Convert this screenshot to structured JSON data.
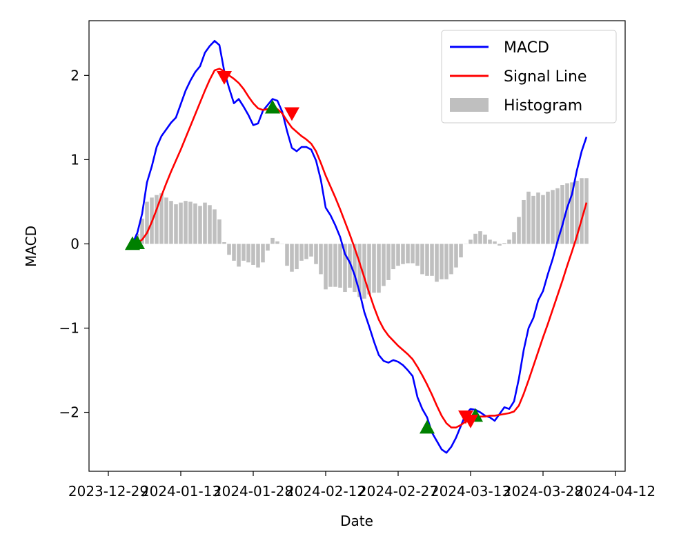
{
  "chart_data": {
    "type": "line",
    "xlabel": "Date",
    "ylabel": "MACD",
    "xlim": [
      "2023-12-25",
      "2024-04-14"
    ],
    "ylim": [
      -2.7,
      2.65
    ],
    "x_ticks": [
      "2023-12-29",
      "2024-01-13",
      "2024-01-28",
      "2024-02-12",
      "2024-02-27",
      "2024-03-13",
      "2024-03-28",
      "2024-04-12"
    ],
    "y_ticks": [
      -2,
      -1,
      0,
      1,
      2
    ],
    "y_tick_labels": [
      "−2",
      "−1",
      "0",
      "1",
      "2"
    ],
    "legend": {
      "position": "top-right",
      "entries": [
        "MACD",
        "Signal Line",
        "Histogram"
      ]
    },
    "dates_start": "2024-01-03",
    "dates_end": "2024-04-10",
    "series": [
      {
        "name": "MACD",
        "color": "#0000ff",
        "values": [
          0,
          0.13,
          0.36,
          0.73,
          0.92,
          1.15,
          1.28,
          1.36,
          1.44,
          1.5,
          1.66,
          1.82,
          1.94,
          2.04,
          2.11,
          2.27,
          2.35,
          2.41,
          2.36,
          2.05,
          1.85,
          1.67,
          1.72,
          1.63,
          1.53,
          1.41,
          1.43,
          1.58,
          1.65,
          1.72,
          1.7,
          1.57,
          1.34,
          1.14,
          1.1,
          1.15,
          1.15,
          1.12,
          0.99,
          0.76,
          0.43,
          0.34,
          0.22,
          0.08,
          -0.12,
          -0.22,
          -0.37,
          -0.57,
          -0.81,
          -0.98,
          -1.16,
          -1.32,
          -1.39,
          -1.41,
          -1.38,
          -1.4,
          -1.44,
          -1.5,
          -1.57,
          -1.82,
          -1.96,
          -2.06,
          -2.24,
          -2.34,
          -2.44,
          -2.48,
          -2.41,
          -2.3,
          -2.16,
          -2.02,
          -1.96,
          -1.97,
          -2.0,
          -2.04,
          -2.06,
          -2.1,
          -2.02,
          -1.94,
          -1.96,
          -1.87,
          -1.6,
          -1.26,
          -1.0,
          -0.88,
          -0.67,
          -0.56,
          -0.36,
          -0.18,
          0.03,
          0.22,
          0.43,
          0.59,
          0.87,
          1.1,
          1.27
        ]
      },
      {
        "name": "Signal Line",
        "color": "#ff0000",
        "values": [
          0,
          0.01,
          0.05,
          0.13,
          0.26,
          0.41,
          0.57,
          0.72,
          0.86,
          0.99,
          1.12,
          1.26,
          1.4,
          1.54,
          1.68,
          1.82,
          1.95,
          2.06,
          2.08,
          2.05,
          2.0,
          1.96,
          1.91,
          1.84,
          1.75,
          1.67,
          1.61,
          1.59,
          1.6,
          1.62,
          1.6,
          1.55,
          1.46,
          1.38,
          1.33,
          1.28,
          1.24,
          1.19,
          1.1,
          0.96,
          0.81,
          0.68,
          0.55,
          0.41,
          0.26,
          0.11,
          -0.05,
          -0.22,
          -0.4,
          -0.58,
          -0.75,
          -0.9,
          -1.01,
          -1.09,
          -1.15,
          -1.21,
          -1.26,
          -1.31,
          -1.37,
          -1.46,
          -1.56,
          -1.67,
          -1.79,
          -1.92,
          -2.04,
          -2.13,
          -2.18,
          -2.18,
          -2.15,
          -2.11,
          -2.08,
          -2.06,
          -2.05,
          -2.05,
          -2.04,
          -2.04,
          -2.03,
          -2.02,
          -2.01,
          -1.99,
          -1.92,
          -1.78,
          -1.62,
          -1.45,
          -1.28,
          -1.11,
          -0.95,
          -0.78,
          -0.61,
          -0.44,
          -0.26,
          -0.09,
          0.09,
          0.29,
          0.49
        ]
      }
    ],
    "histogram": {
      "name": "Histogram",
      "color": "#bfbfbf",
      "values": [
        0.02,
        0.12,
        0.3,
        0.5,
        0.55,
        0.58,
        0.6,
        0.55,
        0.51,
        0.47,
        0.49,
        0.51,
        0.5,
        0.48,
        0.45,
        0.49,
        0.46,
        0.41,
        0.29,
        0.02,
        -0.13,
        -0.2,
        -0.27,
        -0.2,
        -0.22,
        -0.25,
        -0.28,
        -0.22,
        -0.08,
        0.07,
        0.03,
        0.0,
        -0.26,
        -0.33,
        -0.3,
        -0.2,
        -0.18,
        -0.15,
        -0.24,
        -0.36,
        -0.54,
        -0.51,
        -0.51,
        -0.52,
        -0.57,
        -0.52,
        -0.57,
        -0.63,
        -0.65,
        -0.6,
        -0.58,
        -0.58,
        -0.5,
        -0.43,
        -0.3,
        -0.26,
        -0.24,
        -0.23,
        -0.23,
        -0.26,
        -0.36,
        -0.38,
        -0.38,
        -0.45,
        -0.42,
        -0.42,
        -0.36,
        -0.28,
        -0.16,
        0.0,
        0.05,
        0.12,
        0.15,
        0.11,
        0.05,
        0.03,
        -0.02,
        0.01,
        0.05,
        0.14,
        0.32,
        0.52,
        0.62,
        0.57,
        0.61,
        0.58,
        0.62,
        0.64,
        0.66,
        0.7,
        0.72,
        0.73,
        0.75,
        0.78,
        0.78
      ]
    },
    "buy_markers": {
      "color": "#008000",
      "shape": "triangle-up",
      "points": [
        {
          "date": "2024-01-03",
          "value": 0.0
        },
        {
          "date": "2024-01-04",
          "value": 0.01
        },
        {
          "date": "2024-02-01",
          "value": 1.62
        },
        {
          "date": "2024-03-04",
          "value": -2.18
        },
        {
          "date": "2024-03-14",
          "value": -2.04
        }
      ]
    },
    "sell_markers": {
      "color": "#ff0000",
      "shape": "triangle-down",
      "points": [
        {
          "date": "2024-01-22",
          "value": 1.98
        },
        {
          "date": "2024-02-05",
          "value": 1.55
        },
        {
          "date": "2024-03-12",
          "value": -2.05
        },
        {
          "date": "2024-03-13",
          "value": -2.1
        }
      ]
    }
  }
}
